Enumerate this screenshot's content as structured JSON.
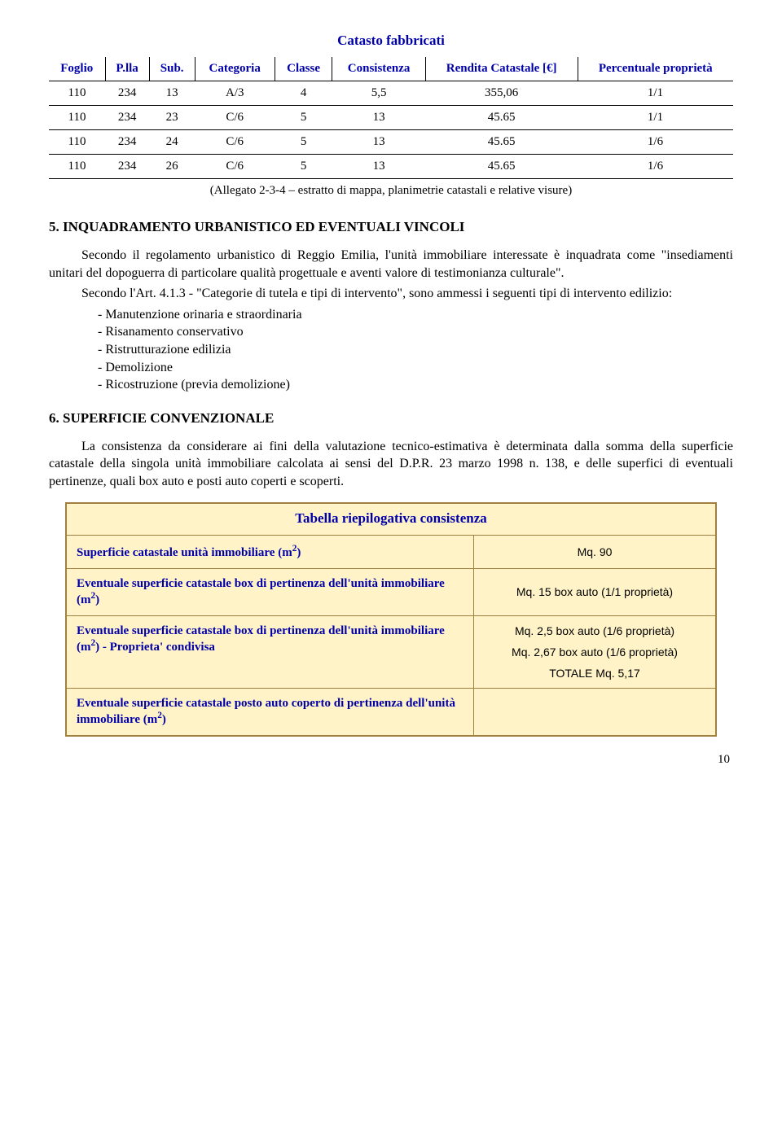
{
  "catasto_table": {
    "title": "Catasto fabbricati",
    "headers": [
      "Foglio",
      "P.lla",
      "Sub.",
      "Categoria",
      "Classe",
      "Consistenza",
      "Rendita Catastale [€]",
      "Percentuale proprietà"
    ],
    "rows": [
      [
        "110",
        "234",
        "13",
        "A/3",
        "4",
        "5,5",
        "355,06",
        "1/1"
      ],
      [
        "110",
        "234",
        "23",
        "C/6",
        "5",
        "13",
        "45.65",
        "1/1"
      ],
      [
        "110",
        "234",
        "24",
        "C/6",
        "5",
        "13",
        "45.65",
        "1/6"
      ],
      [
        "110",
        "234",
        "26",
        "C/6",
        "5",
        "13",
        "45.65",
        "1/6"
      ]
    ],
    "note": "(Allegato 2-3-4 – estratto di mappa, planimetrie catastali e relative visure)"
  },
  "section5": {
    "heading": "5. INQUADRAMENTO URBANISTICO ED EVENTUALI VINCOLI",
    "para1": "Secondo il regolamento urbanistico di Reggio Emilia, l'unità immobiliare interessate è inquadrata come \"insediamenti unitari del dopoguerra di particolare qualità progettuale e aventi valore di testimonianza culturale\".",
    "para2": "Secondo l'Art. 4.1.3 - \"Categorie di tutela  e tipi di intervento\", sono ammessi i seguenti tipi di intervento edilizio:",
    "bullets": [
      "- Manutenzione orinaria e straordinaria",
      "- Risanamento conservativo",
      "- Ristrutturazione edilizia",
      "- Demolizione",
      "- Ricostruzione (previa demolizione)"
    ]
  },
  "section6": {
    "heading": "6. SUPERFICIE CONVENZIONALE",
    "para": "La consistenza da considerare ai fini della valutazione tecnico-estimativa è determinata dalla somma della superficie catastale della singola unità immobiliare calcolata ai sensi del D.P.R. 23 marzo 1998 n. 138, e delle superfici di eventuali pertinenze, quali box auto e posti auto coperti e scoperti."
  },
  "consistenza": {
    "title": "Tabella riepilogativa consistenza",
    "rows": [
      {
        "label_html": "Superficie catastale unità immobiliare (m<sup>2</sup>)",
        "values": [
          "Mq. 90"
        ]
      },
      {
        "label_html": "Eventuale superficie catastale box di pertinenza dell'unità immobiliare (m<sup>2</sup>)",
        "values": [
          "Mq. 15 box auto (1/1 proprietà)"
        ]
      },
      {
        "label_html": "Eventuale superficie catastale box di pertinenza dell'unità immobiliare (m<sup>2</sup>) - Proprieta' condivisa",
        "values": [
          "Mq. 2,5 box auto (1/6 proprietà)",
          "Mq. 2,67 box auto (1/6 proprietà)",
          "TOTALE    Mq. 5,17"
        ]
      },
      {
        "label_html": "Eventuale superficie catastale posto auto coperto di pertinenza dell'unità immobiliare (m<sup>2</sup>)",
        "values": []
      }
    ]
  },
  "page_number": "10",
  "colors": {
    "header_blue": "#0000aa",
    "box_bg": "#fff3c7",
    "box_border": "#a08040"
  }
}
